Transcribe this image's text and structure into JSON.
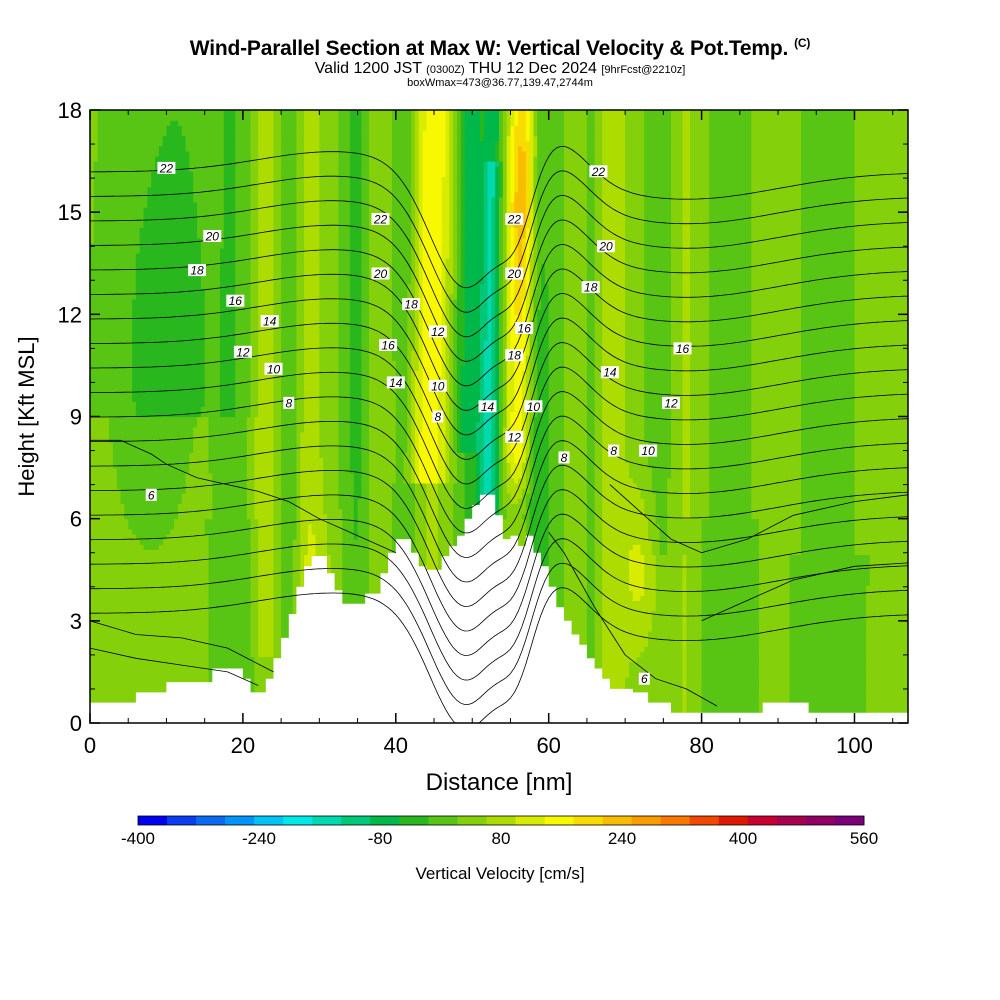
{
  "title": {
    "main": "Wind-Parallel Section at Max W: Vertical Velocity & Pot.Temp.",
    "copyright": "(C)",
    "valid_prefix": "Valid 1200 JST",
    "valid_utc": "(0300Z)",
    "valid_date": "THU 12 Dec 2024",
    "forecast": "[9hrFcst@2210z]",
    "box": "boxWmax=473@36.77,139.47,2744m"
  },
  "chart_data": {
    "type": "heatmap",
    "xlabel": "Distance [nm]",
    "ylabel": "Height [Kft MSL]",
    "xlim": [
      0,
      107
    ],
    "ylim": [
      0,
      18
    ],
    "x_ticks": [
      0,
      20,
      40,
      60,
      80,
      100
    ],
    "y_ticks": [
      0,
      3,
      6,
      9,
      12,
      15,
      18
    ],
    "field": "Vertical Velocity",
    "colorbar": {
      "label": "Vertical Velocity [cm/s]",
      "min": -400,
      "max": 560,
      "step": 40,
      "tick_values": [
        -400,
        -240,
        -80,
        80,
        240,
        400,
        560
      ],
      "colors": [
        "#0000f0",
        "#0a3cf0",
        "#0a6af0",
        "#0094f8",
        "#00c4f8",
        "#00e8e8",
        "#00d8b0",
        "#00c878",
        "#00b84a",
        "#28b81e",
        "#58c414",
        "#84d00a",
        "#acdc00",
        "#d8ec00",
        "#f8f800",
        "#f8dc00",
        "#f8bc00",
        "#f89c00",
        "#f87800",
        "#f04800",
        "#e01800",
        "#c80030",
        "#a80050",
        "#900064",
        "#780078"
      ]
    },
    "contour_field": "Potential Temperature",
    "contour_labels": [
      {
        "x": 10,
        "y": 16.3,
        "text": "22"
      },
      {
        "x": 16,
        "y": 14.3,
        "text": "20"
      },
      {
        "x": 14,
        "y": 13.3,
        "text": "18"
      },
      {
        "x": 19,
        "y": 12.4,
        "text": "16"
      },
      {
        "x": 23.5,
        "y": 11.8,
        "text": "14"
      },
      {
        "x": 20,
        "y": 10.9,
        "text": "12"
      },
      {
        "x": 24,
        "y": 10.4,
        "text": "10"
      },
      {
        "x": 26,
        "y": 9.4,
        "text": "8"
      },
      {
        "x": 8,
        "y": 6.7,
        "text": "6"
      },
      {
        "x": 38,
        "y": 14.8,
        "text": "22"
      },
      {
        "x": 38,
        "y": 13.2,
        "text": "20"
      },
      {
        "x": 42,
        "y": 12.3,
        "text": "18"
      },
      {
        "x": 45.5,
        "y": 11.5,
        "text": "12"
      },
      {
        "x": 39,
        "y": 11.1,
        "text": "16"
      },
      {
        "x": 40,
        "y": 10.0,
        "text": "14"
      },
      {
        "x": 45.5,
        "y": 9.9,
        "text": "10"
      },
      {
        "x": 45.5,
        "y": 9.0,
        "text": "8"
      },
      {
        "x": 52,
        "y": 9.3,
        "text": "14"
      },
      {
        "x": 55.5,
        "y": 14.8,
        "text": "22"
      },
      {
        "x": 55.5,
        "y": 13.2,
        "text": "20"
      },
      {
        "x": 56.8,
        "y": 11.6,
        "text": "16"
      },
      {
        "x": 55.5,
        "y": 10.8,
        "text": "18"
      },
      {
        "x": 55.5,
        "y": 8.4,
        "text": "12"
      },
      {
        "x": 58,
        "y": 9.3,
        "text": "10"
      },
      {
        "x": 62,
        "y": 7.8,
        "text": "8"
      },
      {
        "x": 66.5,
        "y": 16.2,
        "text": "22"
      },
      {
        "x": 67.5,
        "y": 14.0,
        "text": "20"
      },
      {
        "x": 65.5,
        "y": 12.8,
        "text": "18"
      },
      {
        "x": 77.5,
        "y": 11.0,
        "text": "16"
      },
      {
        "x": 68,
        "y": 10.3,
        "text": "14"
      },
      {
        "x": 76,
        "y": 9.4,
        "text": "12"
      },
      {
        "x": 73,
        "y": 8.0,
        "text": "10"
      },
      {
        "x": 68.5,
        "y": 8.0,
        "text": "8"
      },
      {
        "x": 72.5,
        "y": 1.3,
        "text": "6"
      }
    ]
  }
}
